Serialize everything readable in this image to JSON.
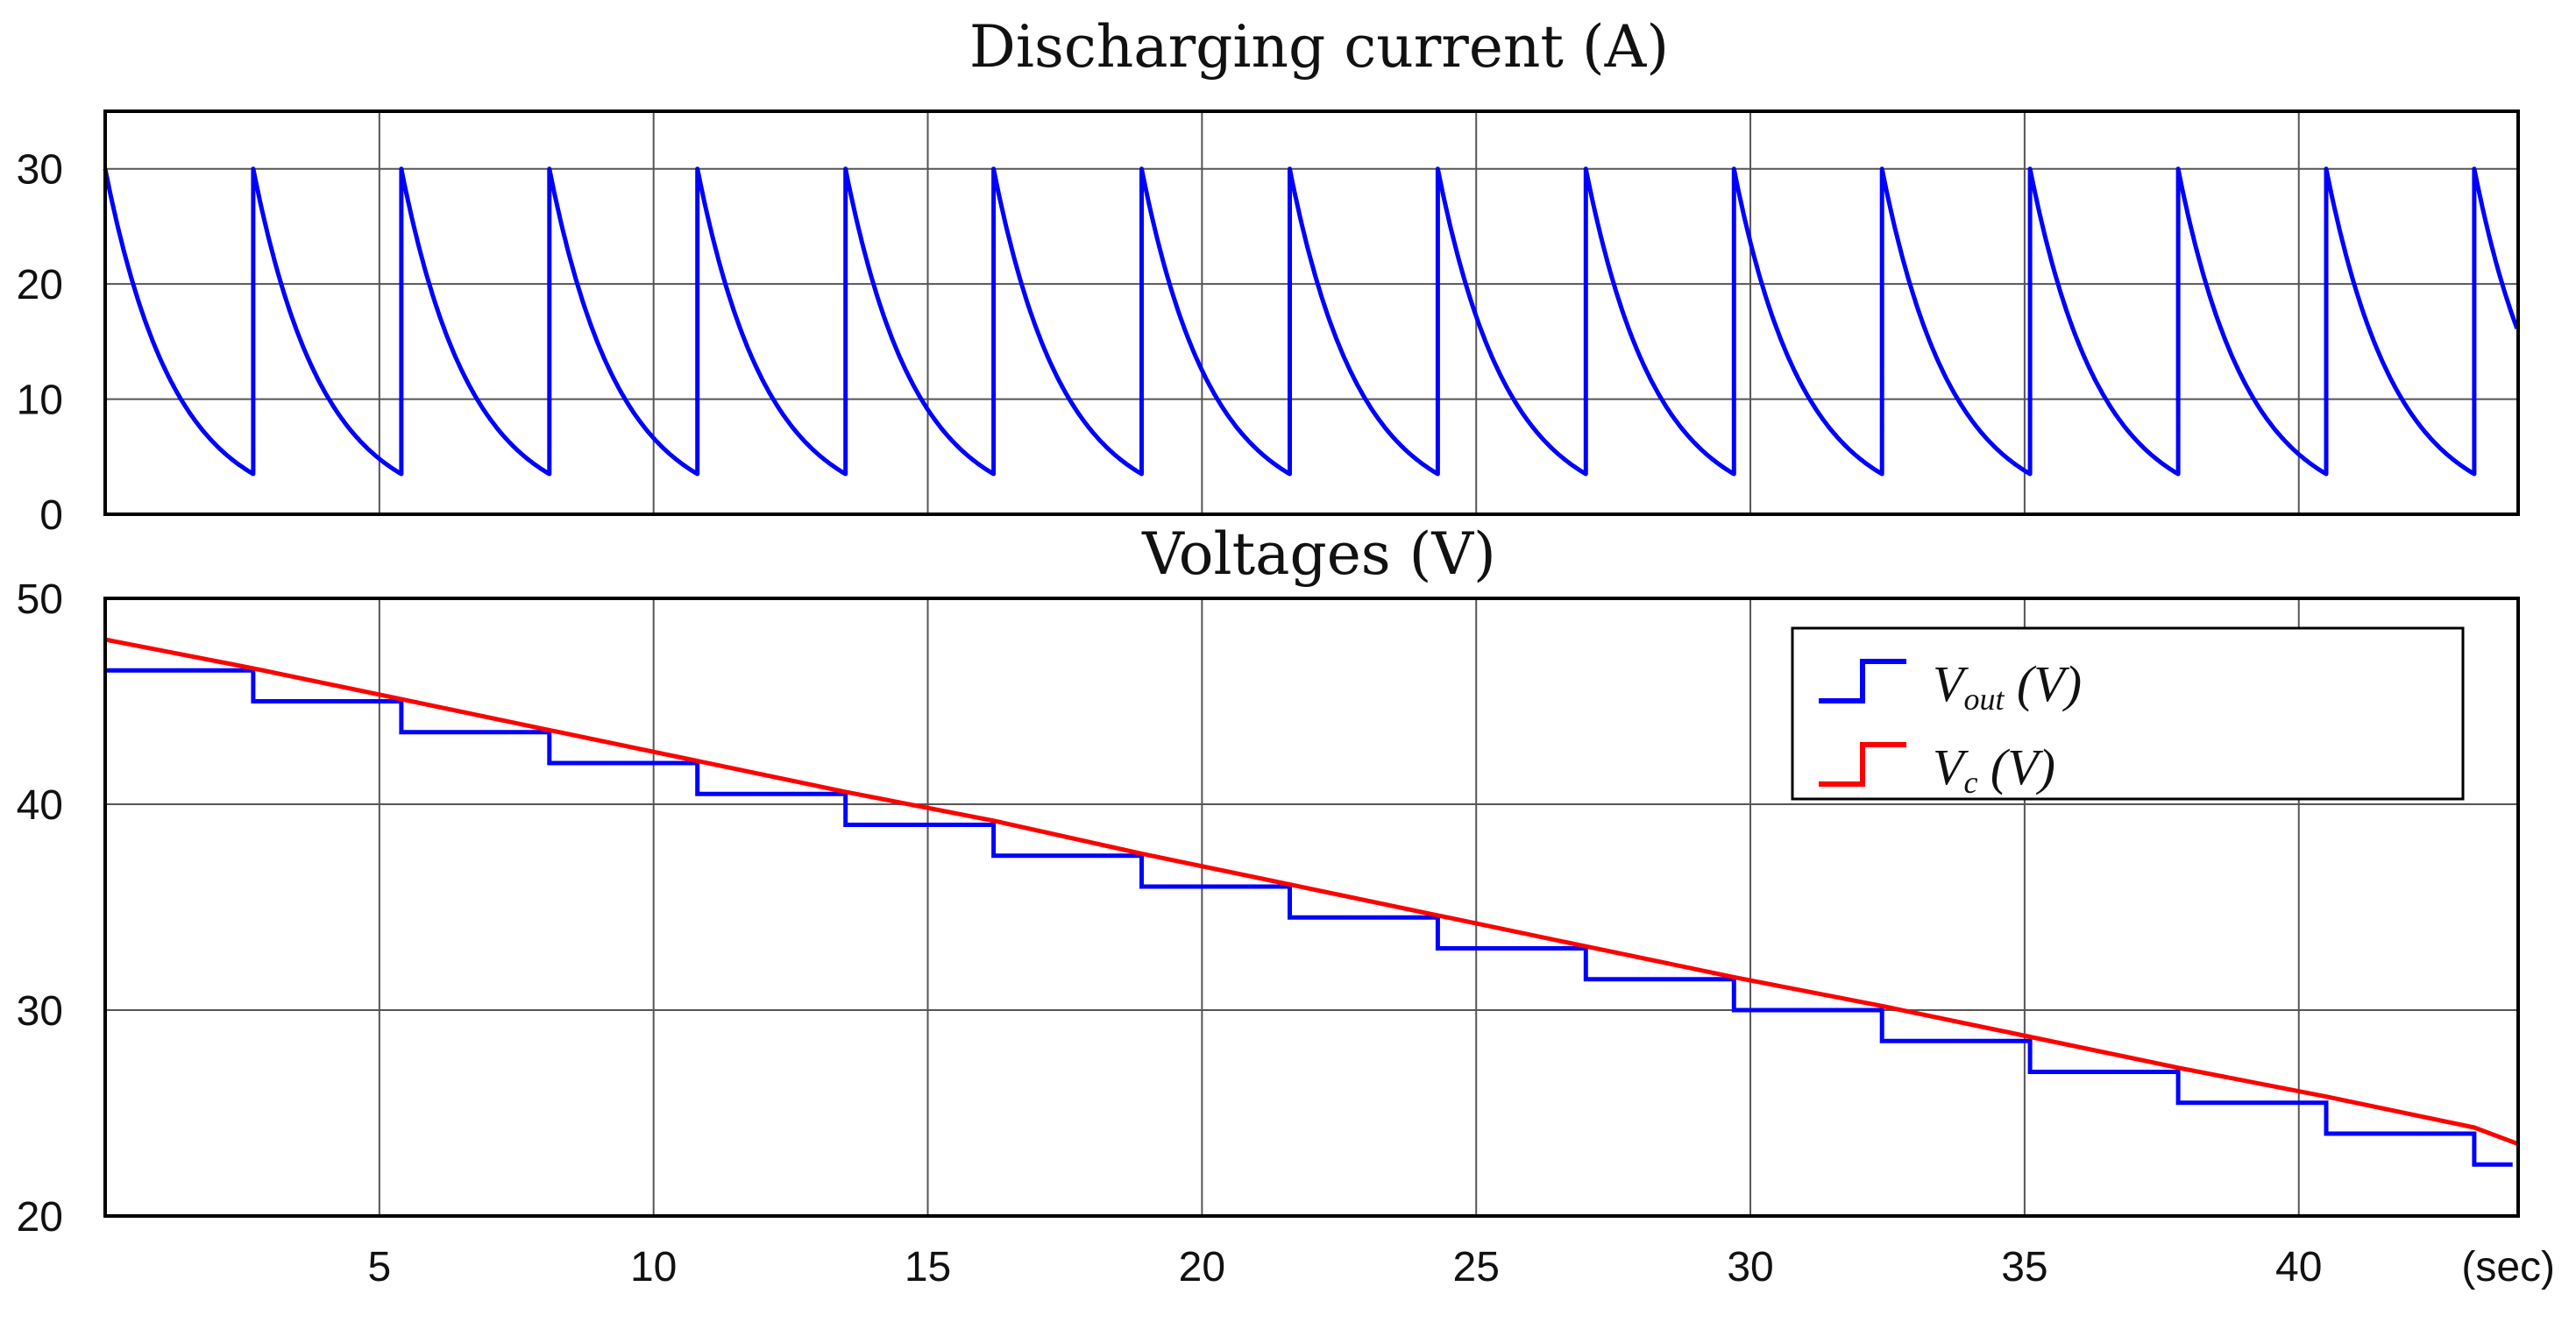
{
  "chart_data": [
    {
      "type": "line",
      "title": "Discharging current (A)",
      "xlim": [
        0,
        44
      ],
      "ylim": [
        0,
        35
      ],
      "x_ticks": [
        5,
        10,
        15,
        20,
        25,
        30,
        35,
        40
      ],
      "y_ticks": [
        "0",
        "10",
        "20",
        "30"
      ],
      "grid": true,
      "series": [
        {
          "name": "Discharging current",
          "color": "#0000ff",
          "shape": "sawtooth exponential decay",
          "peak": 30,
          "trough": 3.5,
          "period": 2.7,
          "final_value": 16
        }
      ]
    },
    {
      "type": "line",
      "title": "Voltages (V)",
      "xlim": [
        0,
        44
      ],
      "ylim": [
        20,
        50
      ],
      "x_ticks": [
        "5",
        "10",
        "15",
        "20",
        "25",
        "30",
        "35",
        "40"
      ],
      "y_ticks": [
        "20",
        "30",
        "40",
        "50"
      ],
      "x_unit": "(sec)",
      "grid": true,
      "legend_position": "top-right",
      "series": [
        {
          "name": "Vout (V)",
          "legend_main": "V",
          "legend_sub": "out",
          "legend_rest": " (V)",
          "color": "#0000ff",
          "style": "step",
          "x": [
            0,
            2.7,
            5.4,
            8.1,
            10.8,
            13.5,
            16.2,
            18.9,
            21.6,
            24.3,
            27.0,
            29.7,
            32.4,
            35.1,
            37.8,
            40.5,
            43.2,
            43.9
          ],
          "y": [
            46.5,
            45.0,
            43.5,
            42.0,
            40.5,
            39.0,
            37.5,
            36.0,
            34.5,
            33.0,
            31.5,
            30.0,
            28.5,
            27.0,
            25.5,
            24.0,
            22.5,
            22.5
          ]
        },
        {
          "name": "Vc (V)",
          "legend_main": "V",
          "legend_sub": "c",
          "legend_rest": " (V)",
          "color": "#ff0000",
          "style": "line",
          "x": [
            0,
            2.7,
            5.4,
            8.1,
            10.8,
            13.5,
            16.2,
            18.9,
            21.6,
            24.3,
            27.0,
            29.7,
            32.4,
            35.1,
            37.8,
            40.5,
            43.2,
            44.0
          ],
          "y": [
            48.0,
            46.6,
            45.1,
            43.6,
            42.1,
            40.6,
            39.2,
            37.6,
            36.1,
            34.6,
            33.1,
            31.6,
            30.2,
            28.7,
            27.2,
            25.8,
            24.3,
            23.5
          ]
        }
      ]
    }
  ]
}
